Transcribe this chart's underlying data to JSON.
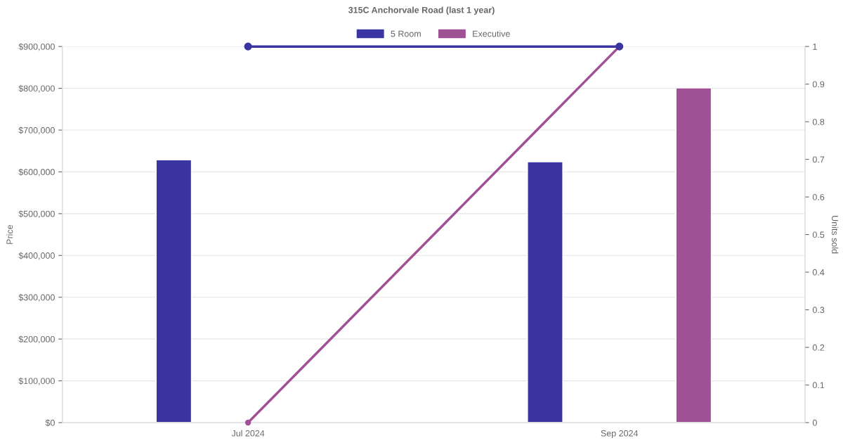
{
  "chart_data": {
    "type": "bar",
    "title": "315C Anchorvale Road (last 1 year)",
    "ylabel": "Price",
    "y2label": "Units sold",
    "categories": [
      "Jul 2024",
      "Sep 2024"
    ],
    "series": [
      {
        "name": "5 Room",
        "color": "#3a35a0",
        "values": [
          629000,
          624000
        ]
      },
      {
        "name": "Executive",
        "color": "#a05094",
        "values": [
          null,
          801000
        ]
      },
      {
        "type": "line",
        "axis": "y2",
        "color": "#3a35a0",
        "values": [
          1,
          1
        ]
      },
      {
        "type": "line",
        "axis": "y2",
        "color": "#a05094",
        "values": [
          0,
          1
        ]
      }
    ],
    "ylim": [
      0,
      900000
    ],
    "yticks": [
      {
        "value": 0,
        "label": "$0"
      },
      {
        "value": 100000,
        "label": "$100,000"
      },
      {
        "value": 200000,
        "label": "$200,000"
      },
      {
        "value": 300000,
        "label": "$300,000"
      },
      {
        "value": 400000,
        "label": "$400,000"
      },
      {
        "value": 500000,
        "label": "$500,000"
      },
      {
        "value": 600000,
        "label": "$600,000"
      },
      {
        "value": 700000,
        "label": "$700,000"
      },
      {
        "value": 800000,
        "label": "$800,000"
      },
      {
        "value": 900000,
        "label": "$900,000"
      }
    ],
    "y2lim": [
      0,
      1
    ],
    "y2ticks": [
      0,
      0.1,
      0.2,
      0.3,
      0.4,
      0.5,
      0.6,
      0.7,
      0.8,
      0.9,
      1
    ],
    "grid": "y",
    "legend": "top",
    "marker": "circle"
  }
}
